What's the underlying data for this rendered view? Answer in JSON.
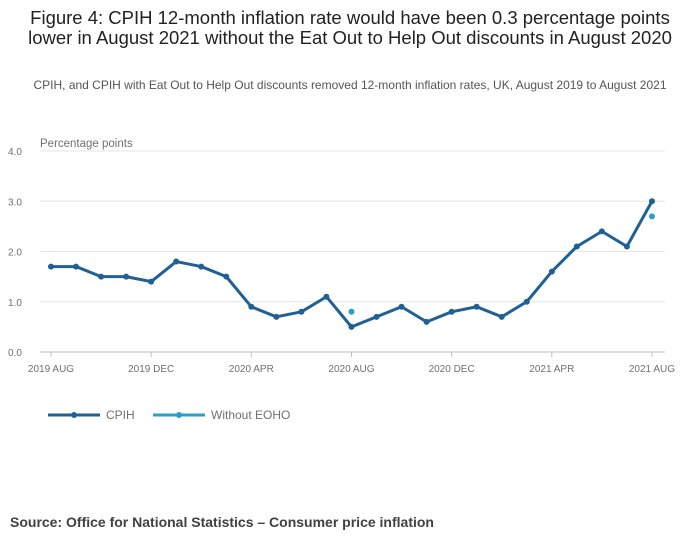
{
  "title": "Figure 4: CPIH 12-month inflation rate would have been 0.3 percentage points lower in August 2021 without the Eat Out to Help Out discounts in August 2020",
  "subtitle": "CPIH, and CPIH with Eat Out to Help Out discounts removed 12-month inflation rates, UK, August 2019 to August 2021",
  "source": "Source: Office for National Statistics – Consumer price inflation",
  "chart_data": {
    "type": "line",
    "ylabel": "Percentage points",
    "ylim": [
      0,
      4.0
    ],
    "yticks": [
      "0.0",
      "1.0",
      "2.0",
      "3.0",
      "4.0"
    ],
    "grid": true,
    "legend": "bottom-left",
    "x": [
      "2019 AUG",
      "2019 SEP",
      "2019 OCT",
      "2019 NOV",
      "2019 DEC",
      "2020 JAN",
      "2020 FEB",
      "2020 MAR",
      "2020 APR",
      "2020 MAY",
      "2020 JUN",
      "2020 JUL",
      "2020 AUG",
      "2020 SEP",
      "2020 OCT",
      "2020 NOV",
      "2020 DEC",
      "2021 JAN",
      "2021 FEB",
      "2021 MAR",
      "2021 APR",
      "2021 MAY",
      "2021 JUN",
      "2021 JUL",
      "2021 AUG"
    ],
    "xtick_labels": [
      "2019 AUG",
      "2019 DEC",
      "2020 APR",
      "2020 AUG",
      "2020 DEC",
      "2021 APR",
      "2021 AUG"
    ],
    "series": [
      {
        "name": "CPIH",
        "color": "#206095",
        "values": [
          1.7,
          1.7,
          1.5,
          1.5,
          1.4,
          1.8,
          1.7,
          1.5,
          0.9,
          0.7,
          0.8,
          1.1,
          0.5,
          0.7,
          0.9,
          0.6,
          0.8,
          0.9,
          0.7,
          1.0,
          1.6,
          2.1,
          2.4,
          2.1,
          3.0
        ]
      },
      {
        "name": "Without EOHO",
        "color": "#27a0cc",
        "values": [
          null,
          null,
          null,
          null,
          null,
          null,
          null,
          null,
          null,
          null,
          null,
          null,
          0.8,
          null,
          null,
          null,
          null,
          null,
          null,
          null,
          null,
          null,
          null,
          null,
          2.7
        ]
      }
    ]
  }
}
